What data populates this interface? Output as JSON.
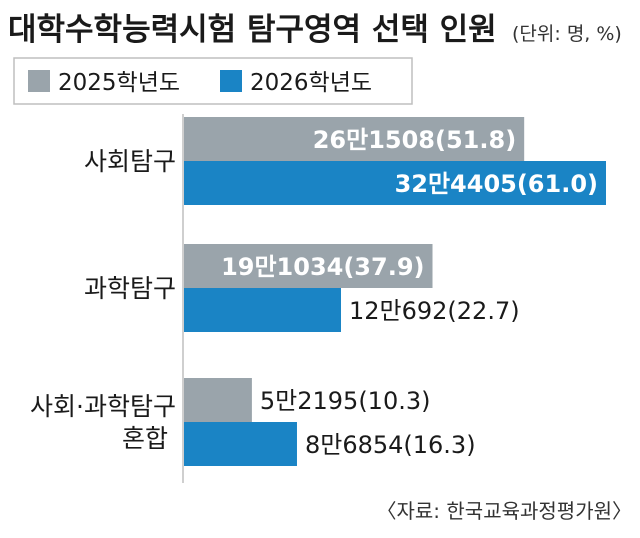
{
  "chart_data": {
    "type": "bar",
    "orientation": "horizontal",
    "title": "대학수학능력시험 탐구영역 선택 인원",
    "unit_note": "(단위: 명, %)",
    "source": "〈자료: 한국교육과정평가원〉",
    "categories": [
      [
        "사회탐구"
      ],
      [
        "과학탐구"
      ],
      [
        "사회·과학탐구",
        "혼합"
      ]
    ],
    "series": [
      {
        "name": "2025학년도",
        "color": "#9aa4ab",
        "values": [
          261508,
          191034,
          52195
        ],
        "labels": [
          "26만1508(51.8)",
          "19만1034(37.9)",
          "5만2195(10.3)"
        ],
        "percent": [
          51.8,
          37.9,
          10.3
        ]
      },
      {
        "name": "2026학년도",
        "color": "#1a84c5",
        "values": [
          324405,
          120692,
          86854
        ],
        "labels": [
          "32만4405(61.0)",
          "12만692(22.7)",
          "8만6854(16.3)"
        ],
        "percent": [
          61.0,
          22.7,
          16.3
        ]
      }
    ],
    "xlim": [
      0,
      324405
    ],
    "grid": false,
    "legend_position": "top-left"
  }
}
